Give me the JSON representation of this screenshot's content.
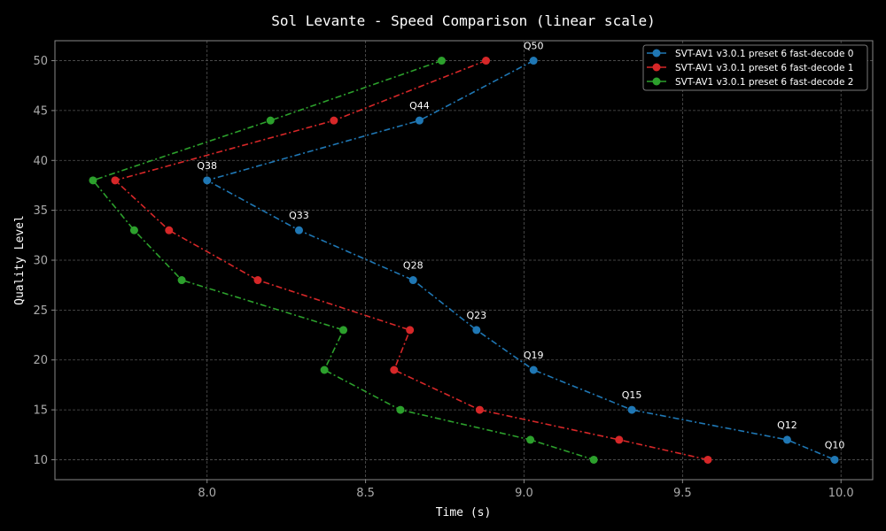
{
  "chart_data": {
    "type": "line",
    "title": "Sol Levante - Speed Comparison (linear scale)",
    "xlabel": "Time (s)",
    "ylabel": "Quality Level",
    "xlim": [
      7.52,
      10.1
    ],
    "ylim": [
      8,
      52
    ],
    "xticks": [
      8.0,
      8.5,
      9.0,
      9.5,
      10.0
    ],
    "xtick_labels": [
      "8.0",
      "8.5",
      "9.0",
      "9.5",
      "10.0"
    ],
    "yticks": [
      10,
      15,
      20,
      25,
      30,
      35,
      40,
      45,
      50
    ],
    "ytick_labels": [
      "10",
      "15",
      "20",
      "25",
      "30",
      "35",
      "40",
      "45",
      "50"
    ],
    "grid": true,
    "legend_position": "top-right",
    "series": [
      {
        "name": "SVT-AV1 v3.0.1 preset 6 fast-decode 0",
        "color": "#1f77b4",
        "points": [
          {
            "x": 9.03,
            "y": 50
          },
          {
            "x": 8.67,
            "y": 44
          },
          {
            "x": 8.0,
            "y": 38
          },
          {
            "x": 8.29,
            "y": 33
          },
          {
            "x": 8.65,
            "y": 28
          },
          {
            "x": 8.85,
            "y": 23
          },
          {
            "x": 9.03,
            "y": 19
          },
          {
            "x": 9.34,
            "y": 15
          },
          {
            "x": 9.83,
            "y": 12
          },
          {
            "x": 9.98,
            "y": 10
          }
        ]
      },
      {
        "name": "SVT-AV1 v3.0.1 preset 6 fast-decode 1",
        "color": "#d62728",
        "points": [
          {
            "x": 8.88,
            "y": 50
          },
          {
            "x": 8.4,
            "y": 44
          },
          {
            "x": 7.71,
            "y": 38
          },
          {
            "x": 7.88,
            "y": 33
          },
          {
            "x": 8.16,
            "y": 28
          },
          {
            "x": 8.64,
            "y": 23
          },
          {
            "x": 8.59,
            "y": 19
          },
          {
            "x": 8.86,
            "y": 15
          },
          {
            "x": 9.3,
            "y": 12
          },
          {
            "x": 9.58,
            "y": 10
          }
        ]
      },
      {
        "name": "SVT-AV1 v3.0.1 preset 6 fast-decode 2",
        "color": "#2ca02c",
        "points": [
          {
            "x": 8.74,
            "y": 50
          },
          {
            "x": 8.2,
            "y": 44
          },
          {
            "x": 7.64,
            "y": 38
          },
          {
            "x": 7.77,
            "y": 33
          },
          {
            "x": 7.92,
            "y": 28
          },
          {
            "x": 8.43,
            "y": 23
          },
          {
            "x": 8.37,
            "y": 19
          },
          {
            "x": 8.61,
            "y": 15
          },
          {
            "x": 9.02,
            "y": 12
          },
          {
            "x": 9.22,
            "y": 10
          }
        ]
      }
    ],
    "annotations": [
      {
        "text": "Q50",
        "x": 9.03,
        "y": 50
      },
      {
        "text": "Q44",
        "x": 8.67,
        "y": 44
      },
      {
        "text": "Q38",
        "x": 8.0,
        "y": 38
      },
      {
        "text": "Q33",
        "x": 8.29,
        "y": 33
      },
      {
        "text": "Q28",
        "x": 8.65,
        "y": 28
      },
      {
        "text": "Q23",
        "x": 8.85,
        "y": 23
      },
      {
        "text": "Q19",
        "x": 9.03,
        "y": 19
      },
      {
        "text": "Q15",
        "x": 9.34,
        "y": 15
      },
      {
        "text": "Q12",
        "x": 9.83,
        "y": 12
      },
      {
        "text": "Q10",
        "x": 9.98,
        "y": 10
      }
    ]
  }
}
